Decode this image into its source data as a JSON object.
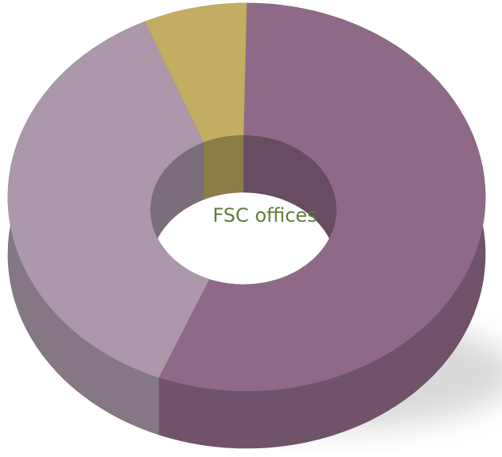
{
  "chart_data": {
    "type": "donut",
    "center_label": "FSC offices",
    "values": [
      56,
      37,
      7
    ],
    "colors": [
      "#8f6a88",
      "#ac98aa",
      "#c2ad62"
    ]
  }
}
